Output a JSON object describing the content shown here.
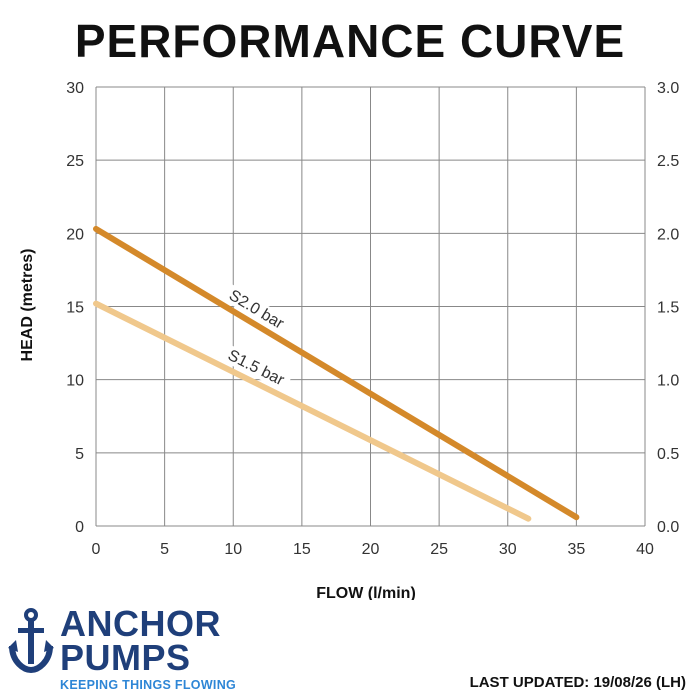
{
  "chart_data": {
    "type": "line",
    "title": "PERFORMANCE CURVE",
    "xlabel": "FLOW (l/min)",
    "ylabel": "HEAD (metres)",
    "xlim": [
      0,
      40
    ],
    "ylim": [
      0,
      30
    ],
    "y2lim": [
      0,
      3.0
    ],
    "x_ticks": [
      "0",
      "5",
      "10",
      "15",
      "20",
      "25",
      "30",
      "35",
      "40"
    ],
    "y_ticks": [
      "0",
      "5",
      "10",
      "15",
      "20",
      "25",
      "30"
    ],
    "y2_ticks": [
      "0.0",
      "0.5",
      "1.0",
      "1.5",
      "2.0",
      "2.5",
      "3.0"
    ],
    "grid": true,
    "legend": "none",
    "series": [
      {
        "name": "S2.0 bar",
        "color": "#d4892a",
        "x": [
          0,
          35
        ],
        "y": [
          20.3,
          0.6
        ]
      },
      {
        "name": "S1.5 bar",
        "color": "#f0c88c",
        "x": [
          0,
          31.5
        ],
        "y": [
          15.2,
          0.5
        ]
      }
    ]
  },
  "brand": {
    "name_line1": "ANCHOR",
    "name_line2": "PUMPS",
    "tagline": "KEEPING THINGS FLOWING",
    "primary_color": "#1f3f7a",
    "accent_color": "#2e86d6",
    "icon": "anchor-icon"
  },
  "footer": {
    "last_updated": "LAST UPDATED: 19/08/26 (LH)"
  }
}
